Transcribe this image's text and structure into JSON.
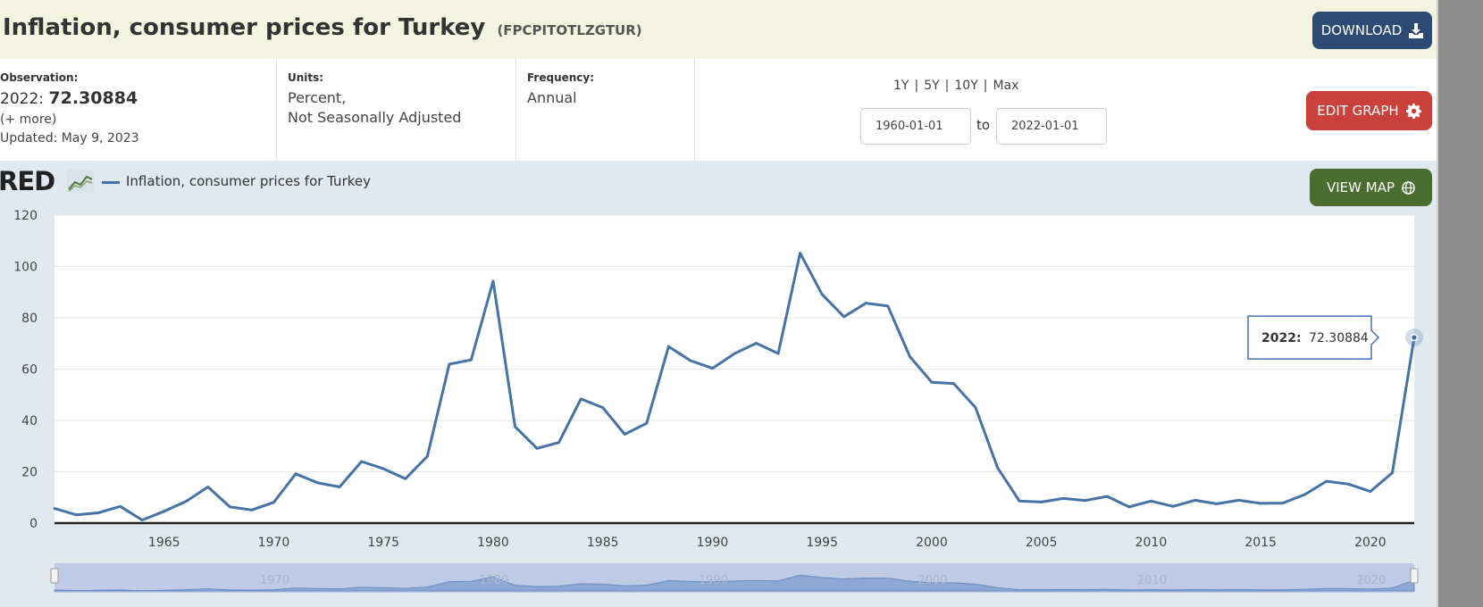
{
  "header": {
    "title": "Inflation, consumer prices for Turkey",
    "series_id": "(FPCPITOTLZGTUR)",
    "download_label": "DOWNLOAD"
  },
  "observation": {
    "label": "Observation:",
    "date": "2022:",
    "value": "72.30884",
    "more": "(+ more)",
    "updated": "Updated: May 9, 2023"
  },
  "units": {
    "label": "Units:",
    "line1": "Percent,",
    "line2": "Not Seasonally Adjusted"
  },
  "frequency": {
    "label": "Frequency:",
    "value": "Annual"
  },
  "ranges": {
    "r1": "1Y",
    "r2": "5Y",
    "r3": "10Y",
    "r4": "Max",
    "separator": "|",
    "start_date": "1960-01-01",
    "to_label": "to",
    "end_date": "2022-01-01"
  },
  "buttons": {
    "edit_graph": "EDIT GRAPH",
    "view_map": "VIEW MAP"
  },
  "brand": {
    "logo_text": "RED"
  },
  "colors": {
    "line": "#4572a7",
    "download": "#2c4a73",
    "edit": "#c9413a",
    "map": "#4a6e2f",
    "chart_bg": "#e1e9f0"
  },
  "tooltip": {
    "date": "2022:",
    "value": "72.30884"
  },
  "chart_data": {
    "type": "line",
    "title": "Inflation, consumer prices for Turkey",
    "xlabel": "",
    "ylabel": "",
    "xlim": [
      1960,
      2022
    ],
    "ylim": [
      0,
      120
    ],
    "yticks": [
      "0",
      "20",
      "40",
      "60",
      "80",
      "100",
      "120"
    ],
    "xticks": [
      "1965",
      "1970",
      "1975",
      "1980",
      "1985",
      "1990",
      "1995",
      "2000",
      "2005",
      "2010",
      "2015",
      "2020"
    ],
    "navigator_ticks": [
      "1970",
      "1980",
      "1990",
      "2000",
      "2010",
      "2020"
    ],
    "grid": true,
    "legend": "top-left",
    "series": [
      {
        "name": "Inflation, consumer prices for Turkey",
        "x": [
          1960,
          1961,
          1962,
          1963,
          1964,
          1965,
          1966,
          1967,
          1968,
          1969,
          1970,
          1971,
          1972,
          1973,
          1974,
          1975,
          1976,
          1977,
          1978,
          1979,
          1980,
          1981,
          1982,
          1983,
          1984,
          1985,
          1986,
          1987,
          1988,
          1989,
          1990,
          1991,
          1992,
          1993,
          1994,
          1995,
          1996,
          1997,
          1998,
          1999,
          2000,
          2001,
          2002,
          2003,
          2004,
          2005,
          2006,
          2007,
          2008,
          2009,
          2010,
          2011,
          2012,
          2013,
          2014,
          2015,
          2016,
          2017,
          2018,
          2019,
          2020,
          2021,
          2022
        ],
        "values": [
          5.7,
          3.2,
          4.0,
          6.5,
          1.2,
          4.6,
          8.5,
          14.1,
          6.3,
          5.1,
          8.1,
          19.2,
          15.7,
          14.1,
          24.0,
          21.2,
          17.3,
          26.0,
          61.9,
          63.6,
          94.3,
          37.6,
          29.1,
          31.4,
          48.4,
          45.0,
          34.6,
          38.9,
          68.8,
          63.3,
          60.3,
          66.0,
          70.1,
          66.1,
          105.2,
          89.1,
          80.4,
          85.7,
          84.6,
          64.9,
          54.9,
          54.4,
          45.0,
          21.6,
          8.6,
          8.2,
          9.6,
          8.8,
          10.4,
          6.3,
          8.6,
          6.5,
          8.9,
          7.5,
          8.9,
          7.7,
          7.8,
          11.1,
          16.3,
          15.2,
          12.3,
          19.6,
          72.30884
        ]
      }
    ]
  }
}
